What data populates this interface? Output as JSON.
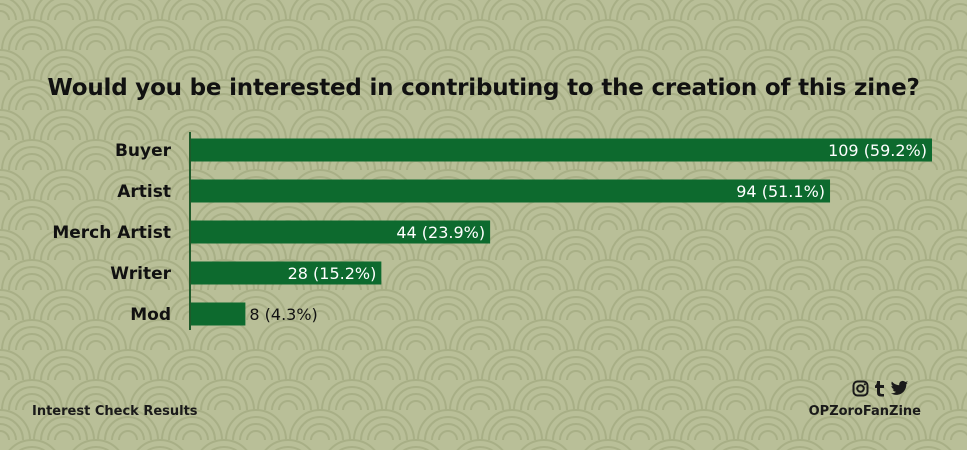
{
  "chart_data": {
    "type": "bar",
    "orientation": "horizontal",
    "title": "Would you be interested in contributing to the creation of this zine?",
    "categories": [
      "Buyer",
      "Artist",
      "Merch Artist",
      "Writer",
      "Mod"
    ],
    "values": [
      109,
      94,
      44,
      28,
      8
    ],
    "percents": [
      "59.2%",
      "51.1%",
      "23.9%",
      "15.2%",
      "4.3%"
    ],
    "bar_labels": [
      "109 (59.2%)",
      "94 (51.1%)",
      "44 (23.9%)",
      "28 (15.2%)",
      "8 (4.3%)"
    ],
    "xlim": [
      0,
      109
    ],
    "grid": false,
    "legend": "none"
  },
  "colors": {
    "background": "#b9bf98",
    "pattern": "#a8af86",
    "bar": "#0d6a2e",
    "axis": "#1e5a2a",
    "text": "#111111",
    "bar_label_inside": "#ffffff",
    "bar_label_outside": "#111111"
  },
  "footer": {
    "caption": "Interest Check Results",
    "handle": "OPZoroFanZine",
    "social_icons": [
      "instagram-icon",
      "tumblr-icon",
      "twitter-icon"
    ]
  }
}
